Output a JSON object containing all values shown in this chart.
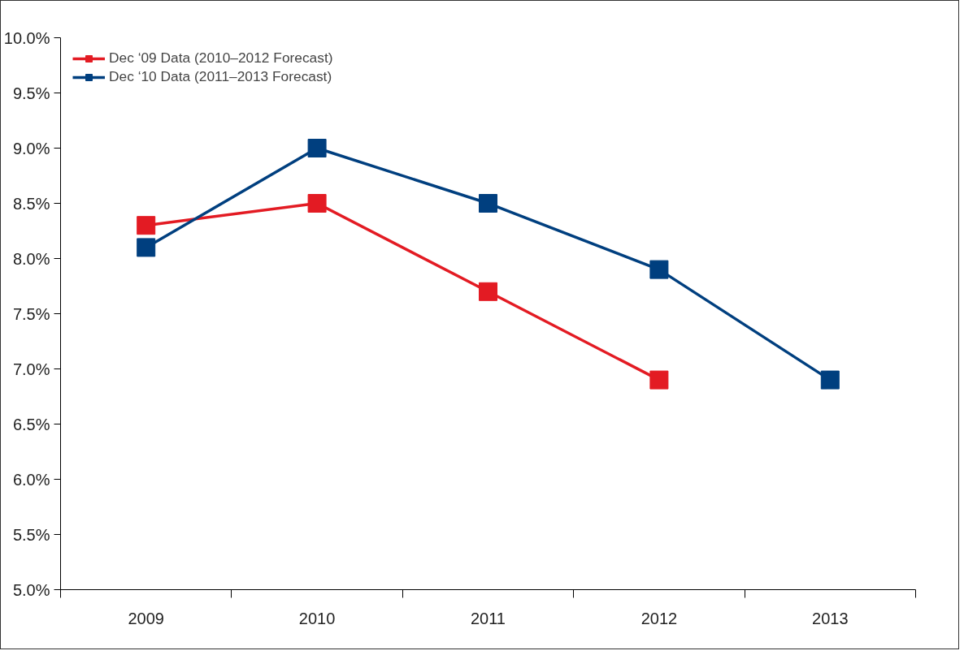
{
  "chart_data": {
    "type": "line",
    "categories": [
      "2009",
      "2010",
      "2011",
      "2012",
      "2013"
    ],
    "series": [
      {
        "name": "Dec ‘09 Data (2010–2012 Forecast)",
        "color": "#e31b23",
        "values": [
          8.3,
          8.5,
          7.7,
          6.9,
          null
        ]
      },
      {
        "name": "Dec ‘10 Data (2011–2013 Forecast)",
        "color": "#003f7f",
        "values": [
          8.1,
          9.0,
          8.5,
          7.9,
          6.9
        ]
      }
    ],
    "ylim": [
      5,
      10
    ],
    "yticks": [
      {
        "value": 5,
        "label": "5.0%"
      },
      {
        "value": 5.5,
        "label": "5.5%"
      },
      {
        "value": 6,
        "label": "6.0%"
      },
      {
        "value": 6.5,
        "label": "6.5%"
      },
      {
        "value": 7,
        "label": "7.0%"
      },
      {
        "value": 7.5,
        "label": "7.5%"
      },
      {
        "value": 8,
        "label": "8.0%"
      },
      {
        "value": 8.5,
        "label": "8.5%"
      },
      {
        "value": 9,
        "label": "9.0%"
      },
      {
        "value": 9.5,
        "label": "9.5%"
      },
      {
        "value": 10,
        "label": "10.0%"
      }
    ],
    "marker": "square",
    "line_style": "solid",
    "grid": false,
    "legend": "top left"
  }
}
